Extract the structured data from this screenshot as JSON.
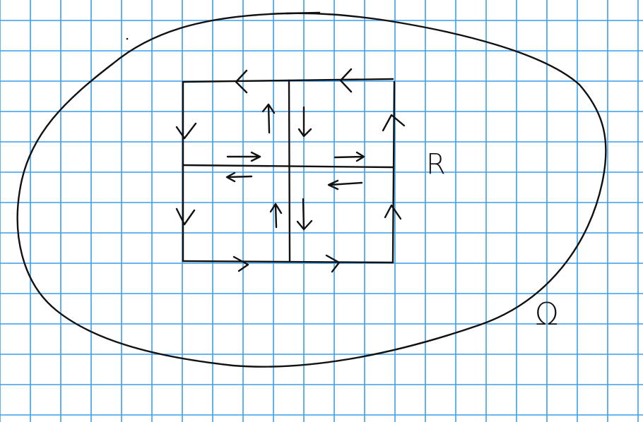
{
  "labels": {
    "region_label": "R",
    "domain_label": "Ω"
  },
  "colors": {
    "paper": "#ffffff",
    "grid": "#3a9ee8",
    "ink": "#111111"
  }
}
